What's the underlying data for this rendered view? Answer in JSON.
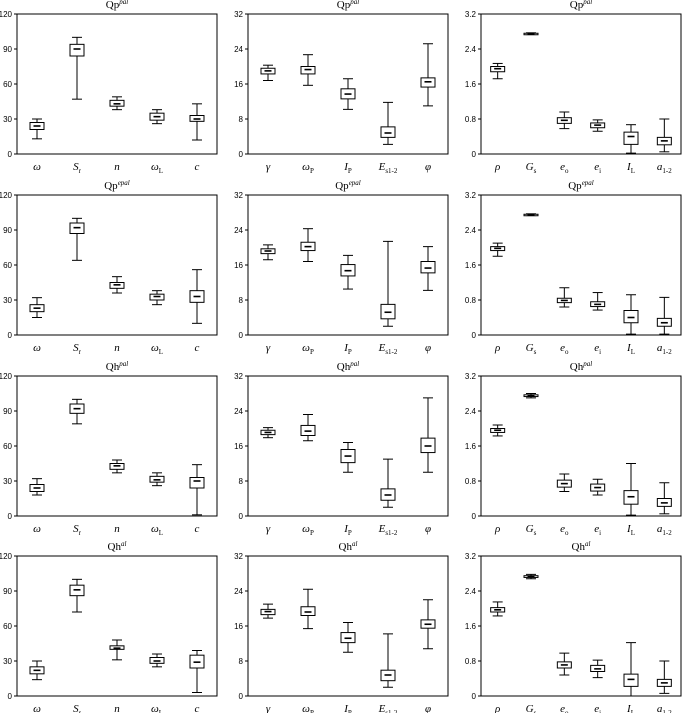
{
  "chart_data": [
    {
      "type": "box",
      "title": "Qp",
      "title_sup": "pal",
      "ylim": [
        0,
        120
      ],
      "yticks": [
        0,
        30,
        60,
        90,
        120
      ],
      "categories": [
        {
          "main": "ω",
          "sub": ""
        },
        {
          "main": "S",
          "sub": "r"
        },
        {
          "main": "n",
          "sub": ""
        },
        {
          "main": "ω",
          "sub": "L"
        },
        {
          "main": "c",
          "sub": ""
        }
      ],
      "boxes": [
        {
          "min": 13,
          "q1": 21,
          "median": 24,
          "q3": 27,
          "max": 30
        },
        {
          "min": 47,
          "q1": 84,
          "median": 90,
          "q3": 94,
          "max": 100
        },
        {
          "min": 38,
          "q1": 41,
          "median": 43,
          "q3": 46,
          "max": 49
        },
        {
          "min": 26,
          "q1": 29,
          "median": 32,
          "q3": 35,
          "max": 38
        },
        {
          "min": 12,
          "q1": 28,
          "median": 30,
          "q3": 33,
          "max": 43
        }
      ]
    },
    {
      "type": "box",
      "title": "Qp",
      "title_sup": "pal",
      "ylim": [
        0,
        32
      ],
      "yticks": [
        0,
        8,
        16,
        24,
        32
      ],
      "categories": [
        {
          "main": "γ",
          "sub": ""
        },
        {
          "main": "ω",
          "sub": "P"
        },
        {
          "main": "I",
          "sub": "P"
        },
        {
          "main": "E",
          "sub": "s1-2"
        },
        {
          "main": "φ",
          "sub": ""
        }
      ],
      "boxes": [
        {
          "min": 16.8,
          "q1": 18.3,
          "median": 19.0,
          "q3": 19.6,
          "max": 20.3
        },
        {
          "min": 15.7,
          "q1": 18.3,
          "median": 19.3,
          "q3": 20.0,
          "max": 22.7
        },
        {
          "min": 10.2,
          "q1": 12.6,
          "median": 13.7,
          "q3": 14.9,
          "max": 17.2
        },
        {
          "min": 2.2,
          "q1": 3.8,
          "median": 4.8,
          "q3": 6.2,
          "max": 11.8
        },
        {
          "min": 11.0,
          "q1": 15.3,
          "median": 16.5,
          "q3": 17.4,
          "max": 25.2
        }
      ]
    },
    {
      "type": "box",
      "title": "Qp",
      "title_sup": "pal",
      "ylim": [
        0,
        3.2
      ],
      "yticks": [
        0,
        0.8,
        1.6,
        2.4,
        3.2
      ],
      "categories": [
        {
          "main": "ρ",
          "sub": ""
        },
        {
          "main": "G",
          "sub": "s"
        },
        {
          "main": "e",
          "sub": "o"
        },
        {
          "main": "e",
          "sub": "i"
        },
        {
          "main": "I",
          "sub": "L"
        },
        {
          "main": "a",
          "sub": "1-2"
        }
      ],
      "boxes": [
        {
          "min": 1.72,
          "q1": 1.88,
          "median": 1.95,
          "q3": 2.0,
          "max": 2.07
        },
        {
          "min": 2.73,
          "q1": 2.74,
          "median": 2.75,
          "q3": 2.76,
          "max": 2.77
        },
        {
          "min": 0.58,
          "q1": 0.7,
          "median": 0.77,
          "q3": 0.83,
          "max": 0.96
        },
        {
          "min": 0.52,
          "q1": 0.6,
          "median": 0.66,
          "q3": 0.71,
          "max": 0.78
        },
        {
          "min": 0.02,
          "q1": 0.22,
          "median": 0.4,
          "q3": 0.5,
          "max": 0.67
        },
        {
          "min": 0.05,
          "q1": 0.21,
          "median": 0.3,
          "q3": 0.38,
          "max": 0.8
        }
      ]
    },
    {
      "type": "box",
      "title": "Qp",
      "title_sup": "epal",
      "ylim": [
        0,
        120
      ],
      "yticks": [
        0,
        30,
        60,
        90,
        120
      ],
      "categories": [
        {
          "main": "ω",
          "sub": ""
        },
        {
          "main": "S",
          "sub": "r"
        },
        {
          "main": "n",
          "sub": ""
        },
        {
          "main": "ω",
          "sub": "L"
        },
        {
          "main": "c",
          "sub": ""
        }
      ],
      "boxes": [
        {
          "min": 15,
          "q1": 20,
          "median": 23,
          "q3": 26,
          "max": 32
        },
        {
          "min": 64,
          "q1": 87,
          "median": 92,
          "q3": 96,
          "max": 100
        },
        {
          "min": 36,
          "q1": 40,
          "median": 43,
          "q3": 45,
          "max": 50
        },
        {
          "min": 26,
          "q1": 30,
          "median": 33,
          "q3": 35,
          "max": 38
        },
        {
          "min": 10,
          "q1": 28,
          "median": 33,
          "q3": 38,
          "max": 56
        }
      ]
    },
    {
      "type": "box",
      "title": "Qp",
      "title_sup": "epal",
      "ylim": [
        0,
        32
      ],
      "yticks": [
        0,
        8,
        16,
        24,
        32
      ],
      "categories": [
        {
          "main": "γ",
          "sub": ""
        },
        {
          "main": "ω",
          "sub": "P"
        },
        {
          "main": "I",
          "sub": "P"
        },
        {
          "main": "E",
          "sub": "s1-2"
        },
        {
          "main": "φ",
          "sub": ""
        }
      ],
      "boxes": [
        {
          "min": 17.2,
          "q1": 18.6,
          "median": 19.2,
          "q3": 19.7,
          "max": 20.6
        },
        {
          "min": 16.8,
          "q1": 19.3,
          "median": 20.2,
          "q3": 21.2,
          "max": 24.3
        },
        {
          "min": 10.5,
          "q1": 13.5,
          "median": 14.7,
          "q3": 16.1,
          "max": 18.2
        },
        {
          "min": 2.0,
          "q1": 3.7,
          "median": 5.2,
          "q3": 7.0,
          "max": 21.4
        },
        {
          "min": 10.2,
          "q1": 14.2,
          "median": 15.3,
          "q3": 16.8,
          "max": 20.2
        }
      ]
    },
    {
      "type": "box",
      "title": "Qp",
      "title_sup": "epal",
      "ylim": [
        0,
        3.2
      ],
      "yticks": [
        0,
        0.8,
        1.6,
        2.4,
        3.2
      ],
      "categories": [
        {
          "main": "ρ",
          "sub": ""
        },
        {
          "main": "G",
          "sub": "s"
        },
        {
          "main": "e",
          "sub": "o"
        },
        {
          "main": "e",
          "sub": "i"
        },
        {
          "main": "I",
          "sub": "L"
        },
        {
          "main": "a",
          "sub": "1-2"
        }
      ],
      "boxes": [
        {
          "min": 1.8,
          "q1": 1.93,
          "median": 1.98,
          "q3": 2.02,
          "max": 2.1
        },
        {
          "min": 2.73,
          "q1": 2.74,
          "median": 2.75,
          "q3": 2.76,
          "max": 2.77
        },
        {
          "min": 0.64,
          "q1": 0.74,
          "median": 0.79,
          "q3": 0.84,
          "max": 1.08
        },
        {
          "min": 0.57,
          "q1": 0.65,
          "median": 0.7,
          "q3": 0.76,
          "max": 0.97
        },
        {
          "min": 0.02,
          "q1": 0.28,
          "median": 0.4,
          "q3": 0.56,
          "max": 0.92
        },
        {
          "min": 0.02,
          "q1": 0.2,
          "median": 0.28,
          "q3": 0.38,
          "max": 0.86
        }
      ]
    },
    {
      "type": "box",
      "title": "Qh",
      "title_sup": "pal",
      "ylim": [
        0,
        120
      ],
      "yticks": [
        0,
        30,
        60,
        90,
        120
      ],
      "categories": [
        {
          "main": "ω",
          "sub": ""
        },
        {
          "main": "S",
          "sub": "r"
        },
        {
          "main": "n",
          "sub": ""
        },
        {
          "main": "ω",
          "sub": "L"
        },
        {
          "main": "c",
          "sub": ""
        }
      ],
      "boxes": [
        {
          "min": 18,
          "q1": 21,
          "median": 24,
          "q3": 27,
          "max": 32
        },
        {
          "min": 79,
          "q1": 88,
          "median": 92,
          "q3": 96,
          "max": 100
        },
        {
          "min": 37,
          "q1": 40,
          "median": 43,
          "q3": 45,
          "max": 48
        },
        {
          "min": 26,
          "q1": 29,
          "median": 31,
          "q3": 34,
          "max": 37
        },
        {
          "min": 1,
          "q1": 24,
          "median": 30,
          "q3": 33,
          "max": 44
        }
      ]
    },
    {
      "type": "box",
      "title": "Qh",
      "title_sup": "pal",
      "ylim": [
        0,
        32
      ],
      "yticks": [
        0,
        8,
        16,
        24,
        32
      ],
      "categories": [
        {
          "main": "γ",
          "sub": ""
        },
        {
          "main": "ω",
          "sub": "P"
        },
        {
          "main": "I",
          "sub": "P"
        },
        {
          "main": "E",
          "sub": "s1-2"
        },
        {
          "main": "φ",
          "sub": ""
        }
      ],
      "boxes": [
        {
          "min": 17.9,
          "q1": 18.6,
          "median": 19.1,
          "q3": 19.6,
          "max": 20.2
        },
        {
          "min": 17.2,
          "q1": 18.4,
          "median": 19.4,
          "q3": 20.7,
          "max": 23.2
        },
        {
          "min": 10.0,
          "q1": 12.2,
          "median": 13.7,
          "q3": 15.2,
          "max": 16.8
        },
        {
          "min": 2.0,
          "q1": 3.6,
          "median": 4.8,
          "q3": 6.2,
          "max": 13.0
        },
        {
          "min": 10.0,
          "q1": 14.5,
          "median": 16.0,
          "q3": 17.8,
          "max": 27.0
        }
      ]
    },
    {
      "type": "box",
      "title": "Qh",
      "title_sup": "pal",
      "ylim": [
        0,
        3.2
      ],
      "yticks": [
        0,
        0.8,
        1.6,
        2.4,
        3.2
      ],
      "categories": [
        {
          "main": "ρ",
          "sub": ""
        },
        {
          "main": "G",
          "sub": "s"
        },
        {
          "main": "e",
          "sub": "o"
        },
        {
          "main": "e",
          "sub": "i"
        },
        {
          "main": "I",
          "sub": "L"
        },
        {
          "main": "a",
          "sub": "1-2"
        }
      ],
      "boxes": [
        {
          "min": 1.83,
          "q1": 1.91,
          "median": 1.96,
          "q3": 2.0,
          "max": 2.08
        },
        {
          "min": 2.7,
          "q1": 2.73,
          "median": 2.75,
          "q3": 2.77,
          "max": 2.8
        },
        {
          "min": 0.56,
          "q1": 0.66,
          "median": 0.74,
          "q3": 0.82,
          "max": 0.96
        },
        {
          "min": 0.48,
          "q1": 0.57,
          "median": 0.65,
          "q3": 0.73,
          "max": 0.84
        },
        {
          "min": 0.02,
          "q1": 0.27,
          "median": 0.44,
          "q3": 0.58,
          "max": 1.2
        },
        {
          "min": 0.05,
          "q1": 0.22,
          "median": 0.3,
          "q3": 0.4,
          "max": 0.76
        }
      ]
    },
    {
      "type": "box",
      "title": "Qh",
      "title_sup": "al",
      "ylim": [
        0,
        120
      ],
      "yticks": [
        0,
        30,
        60,
        90,
        120
      ],
      "categories": [
        {
          "main": "ω",
          "sub": ""
        },
        {
          "main": "S",
          "sub": "r"
        },
        {
          "main": "n",
          "sub": ""
        },
        {
          "main": "ω",
          "sub": "L"
        },
        {
          "main": "c",
          "sub": ""
        }
      ],
      "boxes": [
        {
          "min": 14,
          "q1": 19,
          "median": 22,
          "q3": 25,
          "max": 30
        },
        {
          "min": 72,
          "q1": 86,
          "median": 91,
          "q3": 95,
          "max": 100
        },
        {
          "min": 31,
          "q1": 40,
          "median": 41,
          "q3": 43,
          "max": 48
        },
        {
          "min": 25,
          "q1": 28,
          "median": 30,
          "q3": 33,
          "max": 36
        },
        {
          "min": 3,
          "q1": 24,
          "median": 29,
          "q3": 35,
          "max": 39
        }
      ]
    },
    {
      "type": "box",
      "title": "Qh",
      "title_sup": "al",
      "ylim": [
        0,
        32
      ],
      "yticks": [
        0,
        8,
        16,
        24,
        32
      ],
      "categories": [
        {
          "main": "γ",
          "sub": ""
        },
        {
          "main": "ω",
          "sub": "P"
        },
        {
          "main": "I",
          "sub": "P"
        },
        {
          "main": "E",
          "sub": "s1-2"
        },
        {
          "main": "φ",
          "sub": ""
        }
      ],
      "boxes": [
        {
          "min": 17.8,
          "q1": 18.6,
          "median": 19.3,
          "q3": 19.8,
          "max": 21.0
        },
        {
          "min": 15.4,
          "q1": 18.4,
          "median": 19.2,
          "q3": 20.4,
          "max": 24.4
        },
        {
          "min": 10.0,
          "q1": 12.2,
          "median": 13.2,
          "q3": 14.5,
          "max": 16.8
        },
        {
          "min": 2.0,
          "q1": 3.5,
          "median": 4.8,
          "q3": 5.9,
          "max": 14.2
        },
        {
          "min": 10.8,
          "q1": 15.5,
          "median": 16.4,
          "q3": 17.4,
          "max": 22.0
        }
      ]
    },
    {
      "type": "box",
      "title": "Qh",
      "title_sup": "al",
      "ylim": [
        0,
        3.2
      ],
      "yticks": [
        0,
        0.8,
        1.6,
        2.4,
        3.2
      ],
      "categories": [
        {
          "main": "ρ",
          "sub": ""
        },
        {
          "main": "G",
          "sub": "s"
        },
        {
          "main": "e",
          "sub": "o"
        },
        {
          "main": "e",
          "sub": "i"
        },
        {
          "main": "I",
          "sub": "L"
        },
        {
          "main": "a",
          "sub": "1-2"
        }
      ],
      "boxes": [
        {
          "min": 1.83,
          "q1": 1.92,
          "median": 1.97,
          "q3": 2.02,
          "max": 2.15
        },
        {
          "min": 2.68,
          "q1": 2.71,
          "median": 2.73,
          "q3": 2.75,
          "max": 2.78
        },
        {
          "min": 0.48,
          "q1": 0.64,
          "median": 0.71,
          "q3": 0.78,
          "max": 0.98
        },
        {
          "min": 0.42,
          "q1": 0.56,
          "median": 0.62,
          "q3": 0.7,
          "max": 0.82
        },
        {
          "min": 0.0,
          "q1": 0.22,
          "median": 0.38,
          "q3": 0.5,
          "max": 1.22
        },
        {
          "min": 0.06,
          "q1": 0.22,
          "median": 0.3,
          "q3": 0.38,
          "max": 0.8
        }
      ]
    }
  ]
}
